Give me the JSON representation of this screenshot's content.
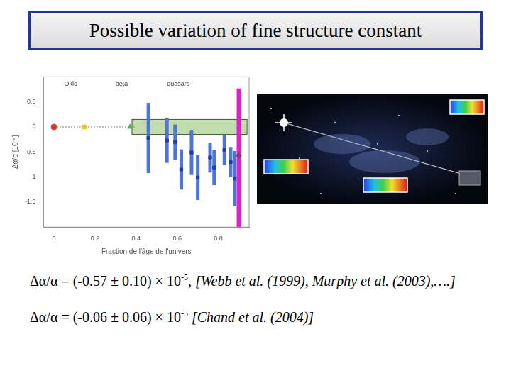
{
  "slide": {
    "title": "Possible variation of fine structure constant",
    "lines": [
      {
        "text": "Δα/α = (-0.57 ± 0.10) × 10",
        "exponent": "-5",
        "separator": ",",
        "reference": "[Webb et al. (1999), Murphy et al. (2003),….]"
      },
      {
        "text": "Δα/α = (-0.06 ± 0.06) × 10",
        "exponent": "-5",
        "reference": "[Chand et al. (2004)]"
      }
    ]
  },
  "chart_data": {
    "type": "scatter",
    "xlabel": "Fraction de l'âge de l'univers",
    "ylabel": "Δα/α [10⁻⁵]",
    "annotations": [
      "Oklo",
      "beta",
      "quasars"
    ],
    "xlim": [
      -0.05,
      0.95
    ],
    "xticks": [
      0,
      0.2,
      0.4,
      0.6,
      0.8
    ],
    "ylim": [
      -2,
      1
    ],
    "yticks": [
      -1.5,
      -1,
      -0.5,
      0,
      0.5
    ],
    "grid": false,
    "series": [
      {
        "color": "#d23c2c",
        "marker": "circle",
        "x": [
          0
        ],
        "values": [
          0
        ]
      },
      {
        "color": "#e8c81a",
        "marker": "square",
        "x": [
          0.15
        ],
        "values": [
          0
        ]
      },
      {
        "color": "#4cb84c",
        "marker": "triangle",
        "x": [
          0.37
        ],
        "values": [
          0
        ]
      },
      {
        "color": "#1f3fa8",
        "marker": "square",
        "x": [
          0.46,
          0.55,
          0.59,
          0.62,
          0.67,
          0.7,
          0.76,
          0.78,
          0.83,
          0.86,
          0.88
        ],
        "values": [
          -0.22,
          -0.27,
          -0.3,
          -0.85,
          -0.51,
          -1.01,
          -0.61,
          -0.81,
          -0.46,
          -0.7,
          -1.03
        ],
        "errors": [
          0.7,
          0.45,
          0.35,
          0.4,
          0.45,
          0.45,
          0.3,
          0.35,
          0.3,
          0.3,
          0.55
        ],
        "error_color": "#4f74d9"
      },
      {
        "color": "#8c3a6a",
        "marker": "diamond",
        "x": [
          0.9
        ],
        "values": [
          -0.57
        ]
      }
    ],
    "bands": [
      {
        "x": 0.9,
        "low": -2.03,
        "high": 0.77,
        "color": "#e020c8"
      }
    ],
    "region": {
      "xlim": [
        0.38,
        0.94
      ],
      "ylim": [
        -0.15,
        0.15
      ],
      "color": "#8fbf6a"
    },
    "reference_line": {
      "y": 0,
      "xlim": [
        0,
        0.4
      ],
      "line_style": "dotted",
      "color": "#888888"
    }
  }
}
